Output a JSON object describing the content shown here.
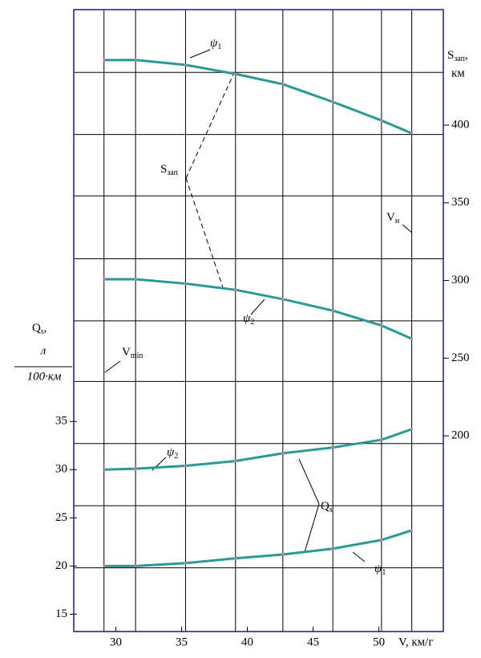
{
  "chart_data": {
    "type": "line",
    "x": [
      29.1,
      31.5,
      35.3,
      39.1,
      42.7,
      46.5,
      50.2,
      52.5
    ],
    "xlim": [
      26.8,
      54.9
    ],
    "xticks": [
      30,
      35,
      40,
      45,
      50
    ],
    "ylim": [
      13.2,
      77.75
    ],
    "yticks": [
      15,
      20,
      25,
      30,
      35
    ],
    "y2lim": [
      74,
      474.4
    ],
    "y2ticks": [
      200,
      250,
      300,
      350,
      400
    ],
    "y2grid": [
      434,
      394,
      354.5,
      314,
      274,
      235,
      195,
      155,
      115
    ],
    "x_label": "V, км/г",
    "y_label": {
      "text": "Q",
      "sub": "s",
      "tail": ","
    },
    "y_unit_num": "л",
    "y_unit_den": "100·км",
    "y2_label": {
      "text": "S",
      "sub": "зап",
      "tail": ","
    },
    "y2_unit": "км",
    "series": [
      {
        "axis": "y2",
        "color": "#2a9a94",
        "values": [
          441.9,
          442,
          438.8,
          433,
          426.4,
          415,
          403,
          394.8
        ]
      },
      {
        "axis": "y2",
        "color": "#2a9a94",
        "values": [
          300.8,
          300.8,
          298,
          294,
          288,
          280.6,
          271,
          262.5
        ]
      },
      {
        "axis": "y",
        "color": "#2a9a94",
        "values": [
          30,
          30.1,
          30.4,
          30.9,
          31.7,
          32.3,
          33.1,
          34.2
        ]
      },
      {
        "axis": "y",
        "color": "#2a9a94",
        "values": [
          20,
          20,
          20.3,
          20.8,
          21.2,
          21.8,
          22.7,
          23.7
        ]
      }
    ],
    "annotations": [
      {
        "text": "ψ",
        "sub": "1"
      },
      {
        "text": "ψ",
        "sub": "2"
      },
      {
        "text": "ψ",
        "sub": "2"
      },
      {
        "text": "ψ",
        "sub": "1"
      },
      {
        "text": "S",
        "sub": "зап"
      },
      {
        "text": "Q",
        "sub": "s"
      },
      {
        "text": "V",
        "sub": "н"
      },
      {
        "text": "V",
        "sub": "min"
      }
    ]
  }
}
